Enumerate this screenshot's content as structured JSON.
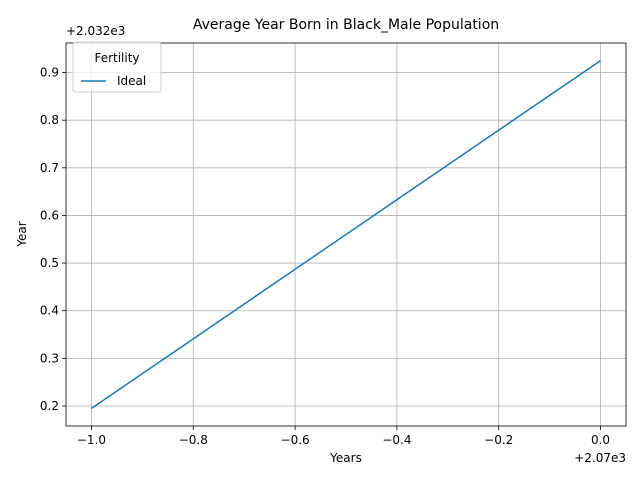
{
  "chart_data": {
    "type": "line",
    "title": "Average Year Born in Black_Male Population",
    "xlabel": "Years",
    "ylabel": "Year",
    "x_offset_label": "+2.07e3",
    "y_offset_label": "+2.032e3",
    "x_ticks": [
      "−1.0",
      "−0.8",
      "−0.6",
      "−0.4",
      "−0.2",
      "0.0"
    ],
    "y_ticks": [
      "0.2",
      "0.3",
      "0.4",
      "0.5",
      "0.6",
      "0.7",
      "0.8",
      "0.9"
    ],
    "xlim": [
      2068.95,
      2070.05
    ],
    "ylim": [
      2032.158,
      2032.962
    ],
    "grid": true,
    "legend": {
      "title": "Fertility",
      "placement": "top-left"
    },
    "series": [
      {
        "name": "Ideal",
        "color": "#1f77b4",
        "x": [
          2069,
          2070
        ],
        "y": [
          2032.195,
          2032.925
        ]
      }
    ]
  }
}
